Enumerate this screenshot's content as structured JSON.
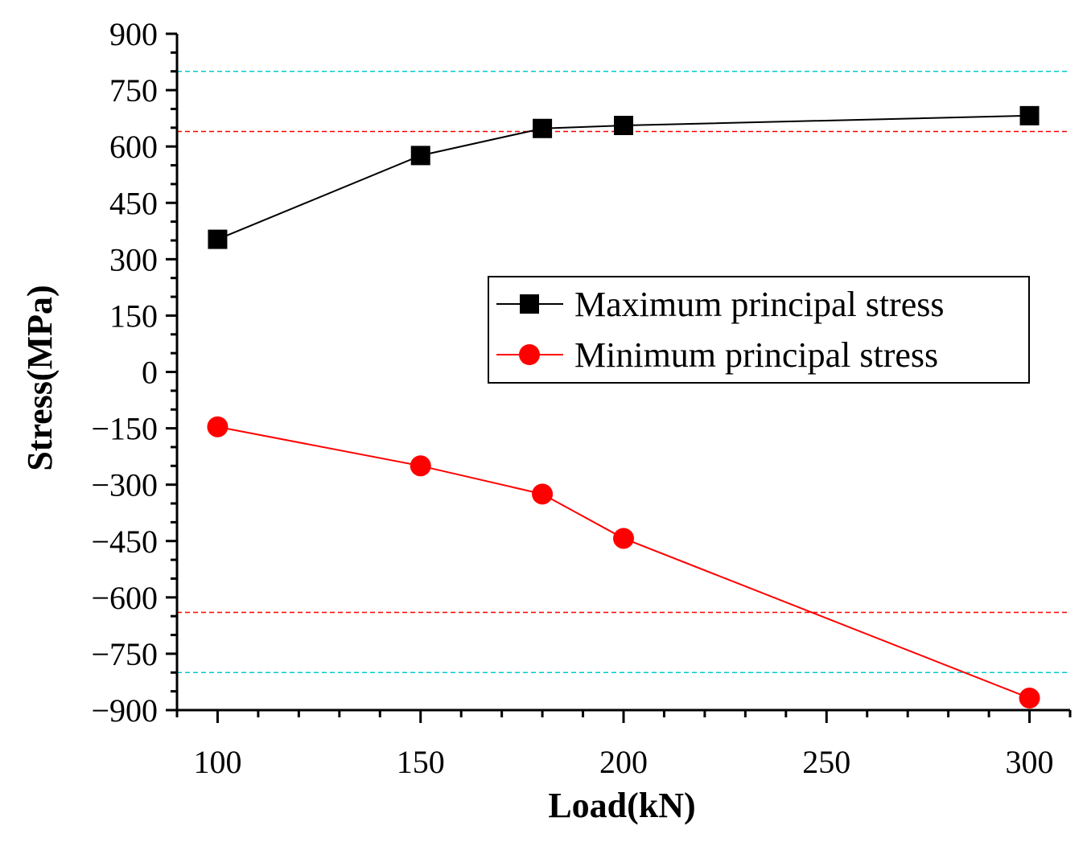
{
  "chart_data": {
    "type": "line",
    "title": "",
    "xlabel": "Load(kN)",
    "ylabel": "Stress(MPa)",
    "xlim": [
      90,
      310
    ],
    "ylim": [
      -900,
      900
    ],
    "x_ticks": [
      100,
      150,
      200,
      250,
      300
    ],
    "x_tick_labels": [
      "100",
      "150",
      "200",
      "250",
      "300"
    ],
    "x_minor_step": 10,
    "y_ticks": [
      -900,
      -750,
      -600,
      -450,
      -300,
      -150,
      0,
      150,
      300,
      450,
      600,
      750,
      900
    ],
    "y_tick_labels": [
      "−900",
      "−750",
      "−600",
      "−450",
      "−300",
      "−150",
      "0",
      "150",
      "300",
      "450",
      "600",
      "750",
      "900"
    ],
    "y_minor_step": 50,
    "grid": false,
    "legend_position": "right-middle",
    "series": [
      {
        "name": "Maximum principal stress",
        "color": "#000000",
        "marker": "square",
        "x": [
          100,
          150,
          180,
          200,
          300
        ],
        "y": [
          353,
          576,
          648,
          656,
          682
        ]
      },
      {
        "name": "Minimum principal stress",
        "color": "#ff0000",
        "marker": "circle",
        "x": [
          100,
          150,
          180,
          200,
          300
        ],
        "y": [
          -146,
          -250,
          -325,
          -443,
          -868
        ]
      }
    ],
    "reference_lines": [
      {
        "y": 800,
        "color": "#00cccc",
        "style": "dashed"
      },
      {
        "y": 640,
        "color": "#ff0000",
        "style": "dashed"
      },
      {
        "y": -640,
        "color": "#ff0000",
        "style": "dashed"
      },
      {
        "y": -800,
        "color": "#00cccc",
        "style": "dashed"
      }
    ]
  }
}
